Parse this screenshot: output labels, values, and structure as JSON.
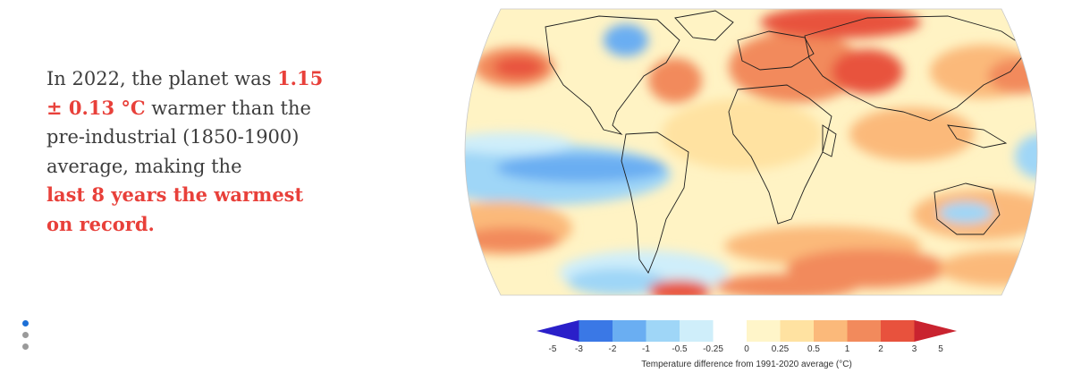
{
  "headline": {
    "part1": "In 2022, the planet was ",
    "value": "1.15 ± 0.13 °C",
    "part2": " warmer than the pre-industrial (1850-1900) average, making the ",
    "highlight": "last 8 years the warmest on record."
  },
  "carousel": {
    "count": 3,
    "active_index": 0
  },
  "map": {
    "ocean_base_color": "#fff3c4"
  },
  "legend": {
    "title": "Temperature difference from 1991-2020 average (°C)",
    "ticks": [
      "-5",
      "-3",
      "-2",
      "-1",
      "-0.5",
      "-0.25",
      "0",
      "0.25",
      "0.5",
      "1",
      "2",
      "3",
      "5"
    ],
    "colors": [
      "#2a1fc9",
      "#3a78e6",
      "#6aaef2",
      "#9fd6f7",
      "#cfeefa",
      "#ffffff",
      "#fff5c9",
      "#ffe2a1",
      "#fbb97a",
      "#f28a5c",
      "#e8523d",
      "#c9232f"
    ]
  }
}
